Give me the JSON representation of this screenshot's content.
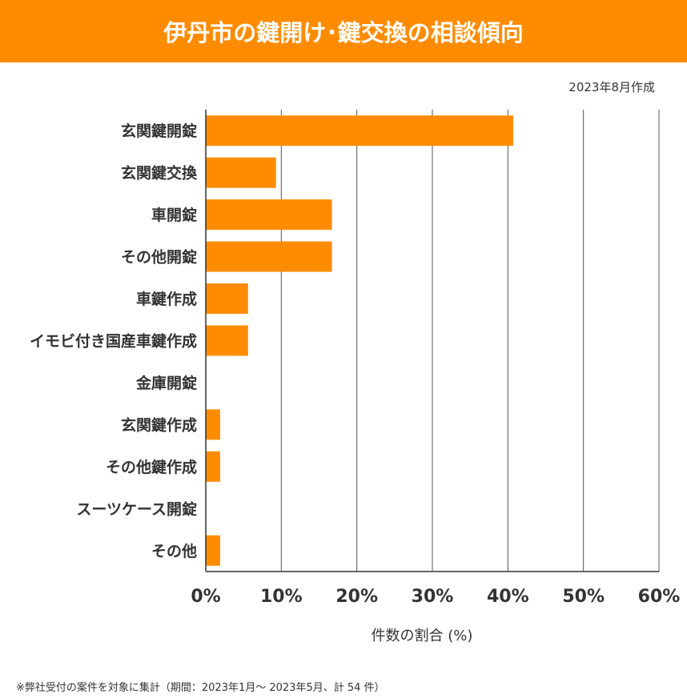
{
  "header": {
    "title": "伊丹市の鍵開け･鍵交換の相談傾向",
    "created": "2023年8月作成"
  },
  "footnote": "※弊社受付の案件を対象に集計（期間：2023年1月～ 2023年5月、計 54 件）",
  "colors": {
    "bar": "#ff8c00",
    "title_bg": "#ff8c00",
    "grid": "#555555"
  },
  "chart_data": {
    "type": "bar",
    "orientation": "horizontal",
    "categories": [
      "玄関鍵開錠",
      "玄関鍵交換",
      "車開錠",
      "その他開錠",
      "車鍵作成",
      "イモビ付き国産車鍵作成",
      "金庫開錠",
      "玄関鍵作成",
      "その他鍵作成",
      "スーツケース開錠",
      "その他"
    ],
    "values": [
      40.7,
      9.3,
      16.7,
      16.7,
      5.6,
      5.6,
      0,
      1.9,
      1.9,
      0,
      1.9
    ],
    "xlabel": "件数の割合 (%)",
    "ylabel": "",
    "xlim": [
      0,
      60
    ],
    "xticks": [
      "0%",
      "10%",
      "20%",
      "30%",
      "40%",
      "50%",
      "60%"
    ],
    "grid": true
  }
}
